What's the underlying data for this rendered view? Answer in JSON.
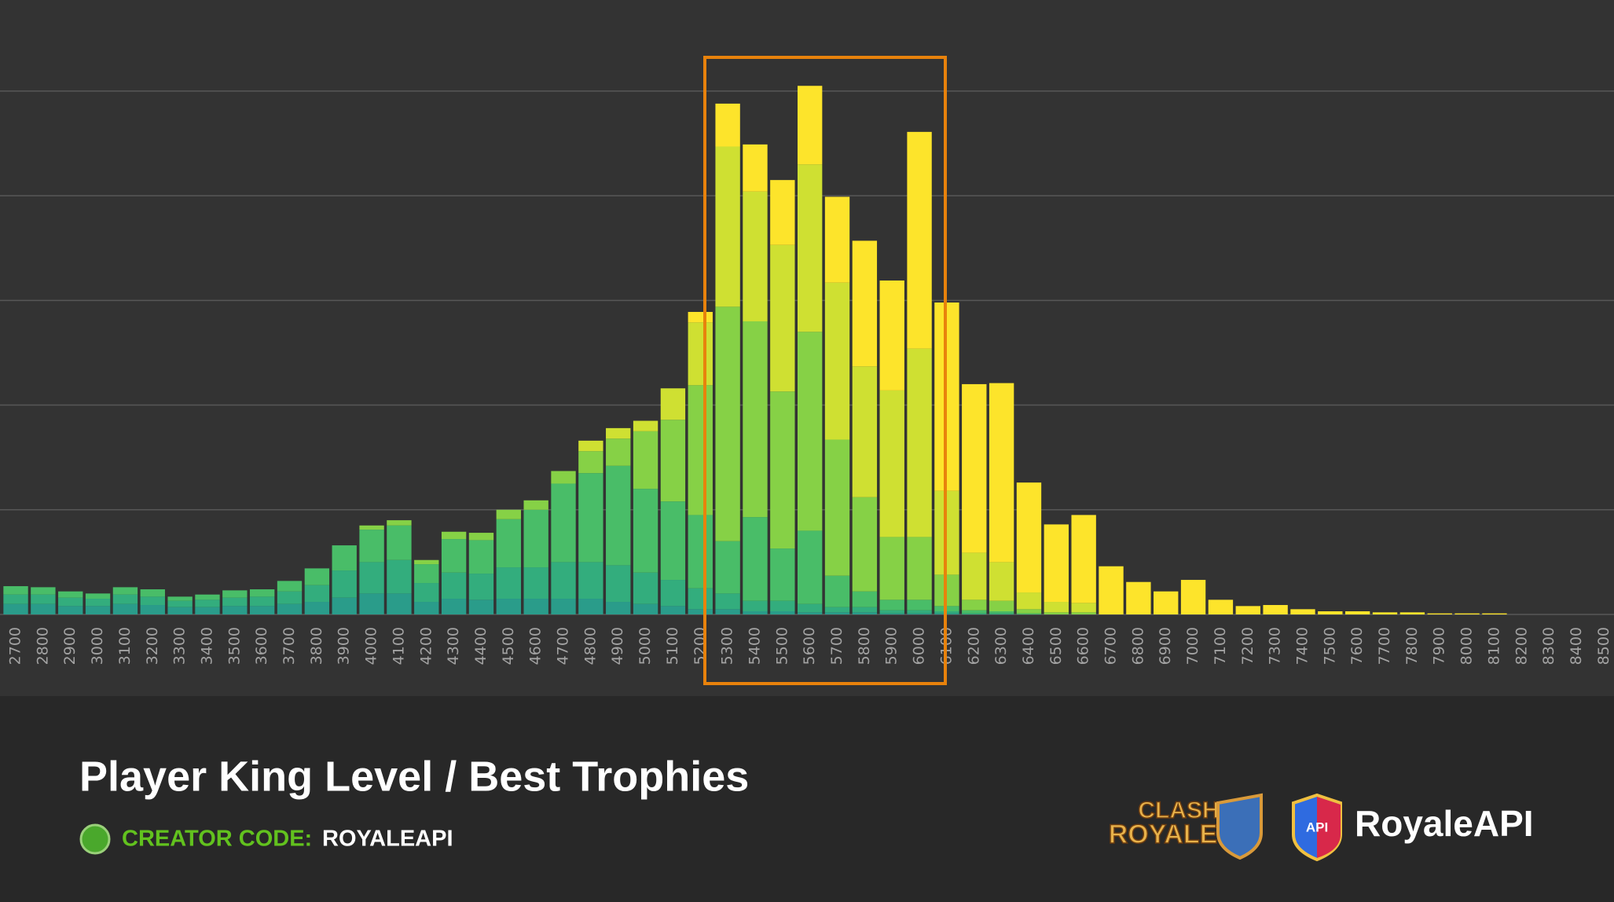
{
  "chart_data": {
    "type": "stacked-bar",
    "title": "Player King Level / Best Trophies",
    "categories": [
      "2700",
      "2800",
      "2900",
      "3000",
      "3100",
      "3200",
      "3300",
      "3400",
      "3500",
      "3600",
      "3700",
      "3800",
      "3900",
      "4000",
      "4100",
      "4200",
      "4300",
      "4400",
      "4500",
      "4600",
      "4700",
      "4800",
      "4900",
      "5000",
      "5100",
      "5200",
      "5300",
      "5400",
      "5500",
      "5600",
      "5700",
      "5800",
      "5900",
      "6000",
      "6100",
      "6200",
      "6300",
      "6400",
      "6500",
      "6600",
      "6700",
      "6800",
      "6900",
      "7000",
      "7100",
      "7200",
      "7300",
      "7400",
      "7500",
      "7600",
      "7700",
      "7800",
      "7900",
      "8000",
      "8100",
      "8200",
      "8300",
      "8400",
      "8500"
    ],
    "series": [
      {
        "color": "#2a9c8a",
        "values": [
          0.1,
          0.1,
          0.08,
          0.08,
          0.1,
          0.09,
          0.07,
          0.07,
          0.08,
          0.08,
          0.1,
          0.12,
          0.16,
          0.2,
          0.2,
          0.12,
          0.15,
          0.14,
          0.15,
          0.15,
          0.15,
          0.15,
          0.12,
          0.1,
          0.08,
          0.05,
          0.05,
          0.03,
          0.03,
          0.02,
          0.02,
          0.02,
          0.01,
          0.01,
          0.01,
          0,
          0,
          0,
          0,
          0,
          0,
          0,
          0,
          0,
          0,
          0,
          0,
          0,
          0,
          0,
          0,
          0,
          0,
          0,
          0,
          0,
          0,
          0,
          0
        ]
      },
      {
        "color": "#33ad7d",
        "values": [
          0.09,
          0.09,
          0.08,
          0.07,
          0.09,
          0.08,
          0.06,
          0.07,
          0.08,
          0.09,
          0.12,
          0.16,
          0.26,
          0.3,
          0.32,
          0.18,
          0.25,
          0.25,
          0.3,
          0.3,
          0.35,
          0.35,
          0.35,
          0.3,
          0.25,
          0.2,
          0.15,
          0.1,
          0.1,
          0.08,
          0.05,
          0.05,
          0.03,
          0.03,
          0.02,
          0.01,
          0.01,
          0,
          0,
          0,
          0,
          0,
          0,
          0,
          0,
          0,
          0,
          0,
          0,
          0,
          0,
          0,
          0,
          0,
          0,
          0,
          0,
          0,
          0
        ]
      },
      {
        "color": "#49bd68",
        "values": [
          0.08,
          0.07,
          0.06,
          0.05,
          0.07,
          0.07,
          0.04,
          0.05,
          0.07,
          0.07,
          0.1,
          0.16,
          0.24,
          0.31,
          0.33,
          0.18,
          0.32,
          0.32,
          0.46,
          0.55,
          0.75,
          0.85,
          0.95,
          0.8,
          0.75,
          0.7,
          0.5,
          0.8,
          0.5,
          0.7,
          0.3,
          0.15,
          0.1,
          0.1,
          0.05,
          0.03,
          0.02,
          0.01,
          0,
          0,
          0,
          0,
          0,
          0,
          0,
          0,
          0,
          0,
          0,
          0,
          0,
          0,
          0,
          0,
          0,
          0,
          0,
          0,
          0
        ]
      },
      {
        "color": "#86d146",
        "values": [
          0,
          0,
          0,
          0,
          0,
          0,
          0,
          0,
          0,
          0,
          0,
          0,
          0,
          0.04,
          0.05,
          0.04,
          0.07,
          0.07,
          0.09,
          0.09,
          0.12,
          0.21,
          0.26,
          0.55,
          0.78,
          1.24,
          2.24,
          1.87,
          1.5,
          1.9,
          1.3,
          0.9,
          0.6,
          0.6,
          0.3,
          0.1,
          0.1,
          0.04,
          0.02,
          0.02,
          0,
          0,
          0,
          0,
          0,
          0,
          0,
          0,
          0,
          0,
          0,
          0,
          0,
          0,
          0,
          0,
          0,
          0,
          0
        ]
      },
      {
        "color": "#cfe032",
        "values": [
          0,
          0,
          0,
          0,
          0,
          0,
          0,
          0,
          0,
          0,
          0,
          0,
          0,
          0,
          0,
          0,
          0,
          0,
          0,
          0,
          0,
          0.1,
          0.1,
          0.1,
          0.3,
          0.6,
          1.53,
          1.24,
          1.4,
          1.6,
          1.5,
          1.25,
          1.4,
          1.8,
          0.8,
          0.45,
          0.37,
          0.16,
          0.1,
          0.09,
          0,
          0,
          0,
          0,
          0,
          0,
          0,
          0,
          0,
          0,
          0,
          0,
          0,
          0,
          0,
          0,
          0,
          0,
          0
        ]
      },
      {
        "color": "#fde42b",
        "values": [
          0,
          0,
          0,
          0,
          0,
          0,
          0,
          0,
          0,
          0,
          0,
          0,
          0,
          0,
          0,
          0,
          0,
          0,
          0,
          0,
          0,
          0,
          0,
          0,
          0,
          0.1,
          0.41,
          0.45,
          0.62,
          0.75,
          0.82,
          1.2,
          1.05,
          2.07,
          1.8,
          1.61,
          1.71,
          1.05,
          0.74,
          0.84,
          0.46,
          0.31,
          0.22,
          0.33,
          0.14,
          0.08,
          0.09,
          0.05,
          0.03,
          0.03,
          0.02,
          0.02,
          0.01,
          0.01,
          0.01,
          0,
          0,
          0,
          0
        ]
      }
    ],
    "ylim": [
      0,
      5.87
    ],
    "yticks": [
      0,
      1,
      2,
      3,
      4,
      5
    ],
    "grid": true
  },
  "footer": {
    "creator_label": "CREATOR CODE:",
    "creator_code": "ROYALEAPI",
    "logo_top": "CLASH",
    "logo_bottom": "ROYALE",
    "shield_text": "API",
    "brand": "RoyaleAPI"
  }
}
